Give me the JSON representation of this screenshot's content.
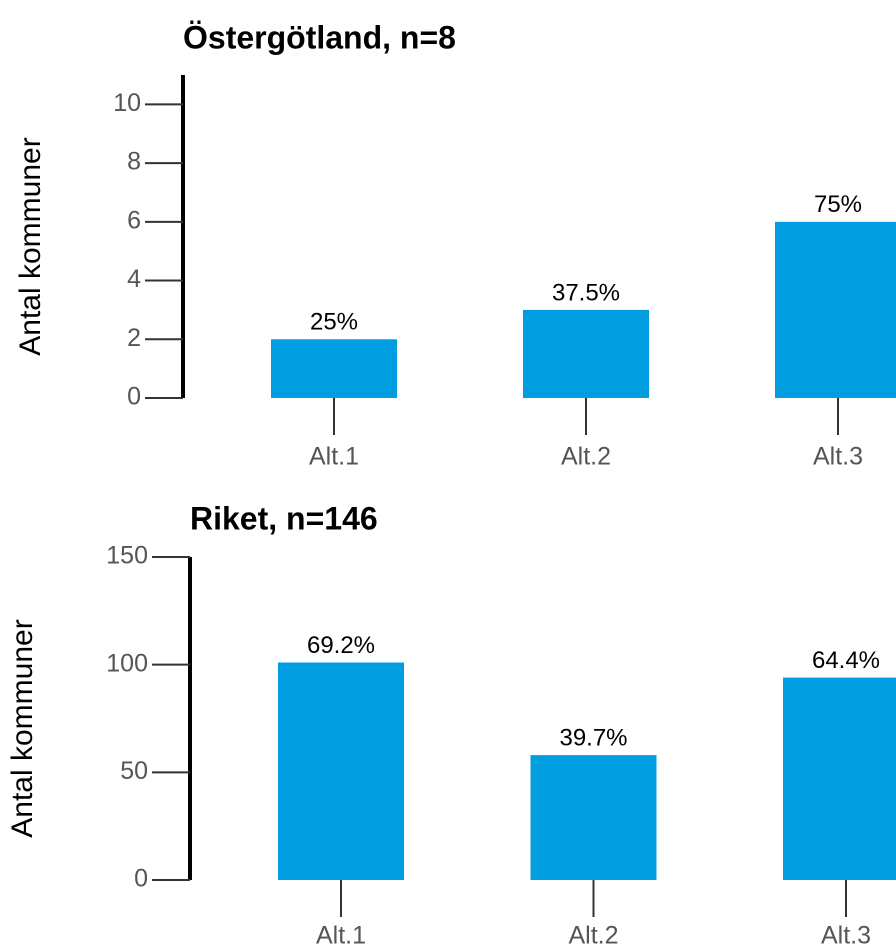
{
  "chart_data": [
    {
      "type": "bar",
      "title": "Östergötland, n=8",
      "y_label": "Antal kommuner",
      "categories": [
        "Alt.1",
        "Alt.2",
        "Alt.3"
      ],
      "values": [
        2,
        3,
        6
      ],
      "value_labels": [
        "25%",
        "37.5%",
        "75%"
      ],
      "color": "#009ee0",
      "ylim": [
        0,
        11
      ],
      "yticks": [
        0,
        2,
        4,
        6,
        8,
        10
      ]
    },
    {
      "type": "bar",
      "title": "Riket, n=146",
      "y_label": "Antal kommuner",
      "categories": [
        "Alt.1",
        "Alt.2",
        "Alt.3"
      ],
      "values": [
        101,
        58,
        94
      ],
      "value_labels": [
        "69.2%",
        "39.7%",
        "64.4%"
      ],
      "color": "#009ee0",
      "ylim": [
        0,
        150
      ],
      "yticks": [
        0,
        50,
        100,
        150
      ]
    }
  ]
}
